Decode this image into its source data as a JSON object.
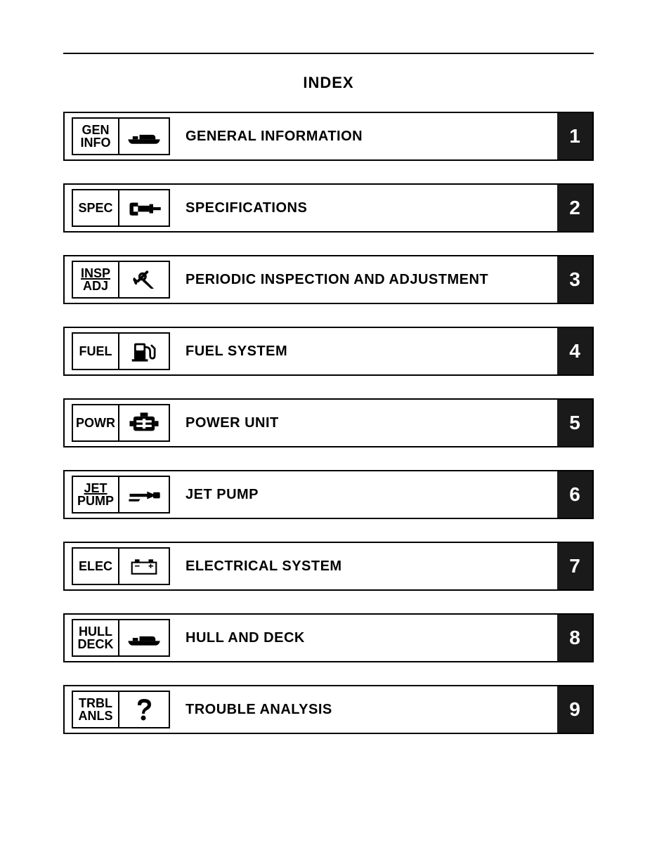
{
  "page": {
    "title": "INDEX",
    "rule_color": "#000000",
    "background": "#ffffff",
    "num_bg": "#1a1a1a",
    "num_fg": "#ffffff"
  },
  "rows": [
    {
      "abbr1": "GEN",
      "abbr2": "INFO",
      "underline1": false,
      "title": "GENERAL INFORMATION",
      "num": "1",
      "icon": "boat"
    },
    {
      "abbr1": "SPEC",
      "abbr2": "",
      "underline1": false,
      "title": "SPECIFICATIONS",
      "num": "2",
      "icon": "micrometer"
    },
    {
      "abbr1": "INSP",
      "abbr2": "ADJ",
      "underline1": true,
      "title": "PERIODIC INSPECTION AND ADJUSTMENT",
      "num": "3",
      "icon": "wrench"
    },
    {
      "abbr1": "FUEL",
      "abbr2": "",
      "underline1": false,
      "title": "FUEL SYSTEM",
      "num": "4",
      "icon": "fuel"
    },
    {
      "abbr1": "POWR",
      "abbr2": "",
      "underline1": false,
      "title": "POWER UNIT",
      "num": "5",
      "icon": "engine"
    },
    {
      "abbr1": "JET",
      "abbr2": "PUMP",
      "underline1": true,
      "title": "JET PUMP",
      "num": "6",
      "icon": "jetpump"
    },
    {
      "abbr1": "ELEC",
      "abbr2": "",
      "underline1": false,
      "title": "ELECTRICAL SYSTEM",
      "num": "7",
      "icon": "battery"
    },
    {
      "abbr1": "HULL",
      "abbr2": "DECK",
      "underline1": false,
      "title": "HULL AND DECK",
      "num": "8",
      "icon": "boat"
    },
    {
      "abbr1": "TRBL",
      "abbr2": "ANLS",
      "underline1": false,
      "title": "TROUBLE ANALYSIS",
      "num": "9",
      "icon": "question"
    }
  ]
}
